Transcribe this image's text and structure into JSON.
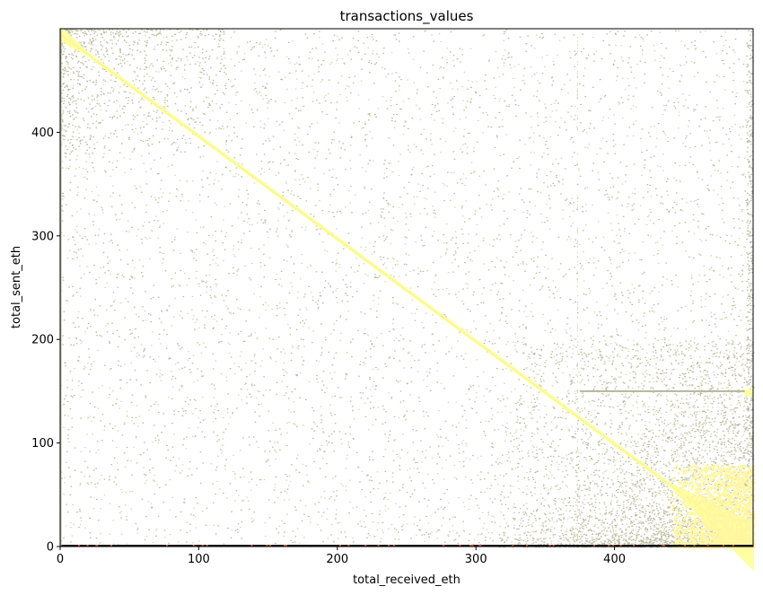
{
  "chart_data": {
    "type": "heatmap",
    "title": "transactions_values",
    "xlabel": "total_received_eth",
    "ylabel": "total_sent_eth",
    "xlim": [
      0,
      500
    ],
    "ylim": [
      0,
      500
    ],
    "x_ticks": [
      0,
      100,
      200,
      300,
      400
    ],
    "y_ticks": [
      0,
      100,
      200,
      300,
      400
    ],
    "grid": false,
    "colors": {
      "diagonal": "#ffff9e",
      "diagonal_core": "#f2ee8a",
      "scatter": "#b6b69a",
      "scatter_light": "#d4d3b8",
      "bottom_row": "#111111",
      "bottom_accent": "#d9603a",
      "dense_corner": "#fff7a0"
    },
    "features": {
      "diagonal_line": {
        "from": [
          0,
          495
        ],
        "to": [
          500,
          0
        ],
        "description": "dense band where received ≈ sent offset"
      },
      "horizontal_band_y": 150,
      "horizontal_band_x_start": 375,
      "vertical_band_x": 495,
      "dense_corner": {
        "x": [
          440,
          500
        ],
        "y": [
          0,
          80
        ]
      },
      "bottom_row_y": 0
    }
  }
}
